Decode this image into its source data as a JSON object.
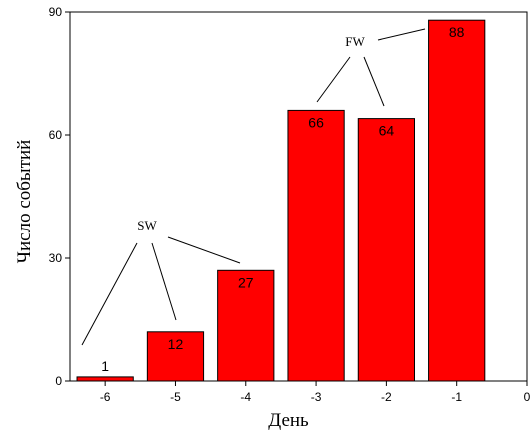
{
  "chart_data": {
    "type": "bar",
    "categories": [
      "-6",
      "-5",
      "-4",
      "-3",
      "-2",
      "-1"
    ],
    "values": [
      1,
      12,
      27,
      66,
      64,
      88
    ],
    "data_labels": [
      "1",
      "12",
      "27",
      "66",
      "64",
      "88"
    ],
    "xlabel": "День",
    "ylabel": "Число событий",
    "xlim": [
      -6.5,
      0
    ],
    "ylim": [
      0,
      90
    ],
    "x_ticks": [
      "-6",
      "-5",
      "-4",
      "-3",
      "-2",
      "-1",
      "0"
    ],
    "y_ticks": [
      "0",
      "30",
      "60",
      "90"
    ],
    "bar_color": "#ff0000",
    "grid": false,
    "annotations": [
      {
        "text": "SW",
        "targets": [
          "-6",
          "-5",
          "-4"
        ]
      },
      {
        "text": "FW",
        "targets": [
          "-3",
          "-2",
          "-1"
        ]
      }
    ]
  }
}
